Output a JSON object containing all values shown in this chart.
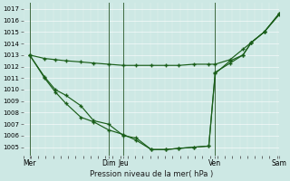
{
  "xlabel": "Pression niveau de la mer( hPa )",
  "background_color": "#cde8e4",
  "line_color": "#1a5e1a",
  "ylim": [
    1004.3,
    1017.5
  ],
  "yticks": [
    1005,
    1006,
    1007,
    1008,
    1009,
    1010,
    1011,
    1012,
    1013,
    1014,
    1015,
    1016,
    1017
  ],
  "xlim": [
    0,
    12
  ],
  "xtick_positions": [
    0.3,
    4.0,
    4.7,
    9.0,
    12.0
  ],
  "xtick_labels": [
    "Mer",
    "Dim",
    "Jeu",
    "Ven",
    "Sam"
  ],
  "vline_positions": [
    0.3,
    4.0,
    4.7,
    9.0,
    12.0
  ],
  "line1_x": [
    0.3,
    1.0,
    1.5,
    2.0,
    2.7,
    3.3,
    4.0,
    4.7,
    5.3,
    6.0,
    6.7,
    7.3,
    8.0,
    8.7,
    9.0,
    9.7,
    10.3,
    10.7,
    11.3,
    12.0
  ],
  "line1_y": [
    1013.0,
    1012.7,
    1012.6,
    1012.5,
    1012.4,
    1012.3,
    1012.2,
    1012.1,
    1012.1,
    1012.1,
    1012.1,
    1012.1,
    1012.2,
    1012.2,
    1012.2,
    1012.6,
    1013.5,
    1014.1,
    1015.0,
    1016.5
  ],
  "line2_x": [
    0.3,
    1.0,
    1.5,
    2.0,
    2.7,
    3.3,
    4.0,
    4.7,
    5.3,
    6.0,
    6.7,
    7.3,
    8.0,
    8.7,
    9.0,
    9.7,
    10.3,
    10.7,
    11.3,
    12.0
  ],
  "line2_y": [
    1013.0,
    1011.0,
    1009.8,
    1008.8,
    1007.6,
    1007.2,
    1006.5,
    1006.1,
    1005.6,
    1004.8,
    1004.8,
    1004.9,
    1005.0,
    1005.1,
    1011.4,
    1012.5,
    1013.0,
    1014.1,
    1015.0,
    1016.6
  ],
  "line3_x": [
    0.3,
    1.0,
    1.5,
    2.0,
    2.7,
    3.3,
    4.0,
    4.7,
    5.3,
    6.0,
    6.7,
    7.3,
    8.0,
    8.7,
    9.0,
    9.7,
    10.3,
    10.7,
    11.3,
    12.0
  ],
  "line3_y": [
    1013.0,
    1011.1,
    1010.0,
    1009.5,
    1008.6,
    1007.3,
    1007.0,
    1006.0,
    1005.8,
    1004.8,
    1004.8,
    1004.9,
    1005.0,
    1005.1,
    1011.5,
    1012.3,
    1013.0,
    1014.1,
    1015.0,
    1016.6
  ]
}
